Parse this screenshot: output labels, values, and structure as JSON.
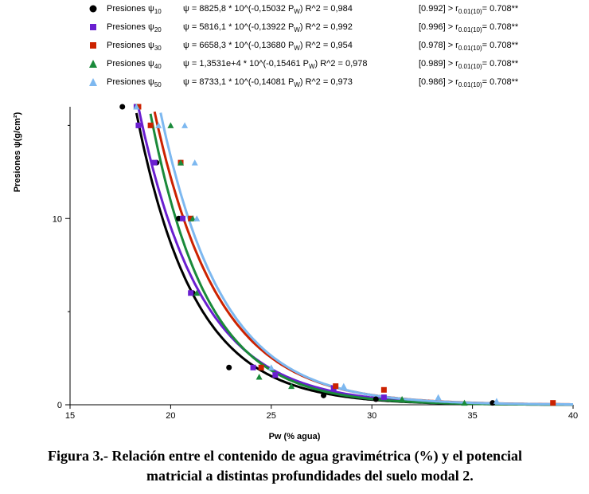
{
  "legend": [
    {
      "name": "Presiones",
      "psi": "ψ",
      "psi_sub": "10",
      "eq_prefix": "ψ = 8825,8 * 10^(-0,15032 P",
      "eq_sub": "W",
      "eq_suffix": ")",
      "r2": "R^2 = 0,984",
      "test_prefix": "[0.992] > r",
      "test_sub": "0.01(10)",
      "test_suffix": "= 0.708**",
      "color": "#000000",
      "marker": "circle"
    },
    {
      "name": "Presiones",
      "psi": "ψ",
      "psi_sub": "20",
      "eq_prefix": "ψ = 5816,1 * 10^(-0,13922 P",
      "eq_sub": "W",
      "eq_suffix": ")",
      "r2": "R^2 = 0,992",
      "test_prefix": "[0.996] > r",
      "test_sub": "0.01(10)",
      "test_suffix": "= 0.708**",
      "color": "#6a1fd0",
      "marker": "square"
    },
    {
      "name": "Presiones",
      "psi": "ψ",
      "psi_sub": "30",
      "eq_prefix": "ψ = 6658,3 * 10^(-0,13680 P",
      "eq_sub": "W",
      "eq_suffix": ")",
      "r2": "R^2 = 0,954",
      "test_prefix": "[0.978] > r",
      "test_sub": "0.01(10)",
      "test_suffix": "= 0.708**",
      "color": "#cc2200",
      "marker": "square"
    },
    {
      "name": "Presiones",
      "psi": "ψ",
      "psi_sub": "40",
      "eq_prefix": "ψ = 1,3531e+4 * 10^(-0,15461 P",
      "eq_sub": "W",
      "eq_suffix": ")",
      "r2": "R^2 = 0,978",
      "test_prefix": "[0.989] > r",
      "test_sub": "0.01(10)",
      "test_suffix": "= 0.708**",
      "color": "#1a8a3a",
      "marker": "triangle"
    },
    {
      "name": "Presiones",
      "psi": "ψ",
      "psi_sub": "50",
      "eq_prefix": "ψ = 8733,1 * 10^(-0,14081 P",
      "eq_sub": "W",
      "eq_suffix": ")",
      "r2": "R^2 = 0,973",
      "test_prefix": "[0.986] > r",
      "test_sub": "0.01(10)",
      "test_suffix": "= 0.708**",
      "color": "#7db8f0",
      "marker": "triangle"
    }
  ],
  "axes": {
    "ylabel": "Presiones ψ(g/cm²)",
    "xlabel": "Pw (% agua)"
  },
  "caption": {
    "line1": "Figura  3.- Relación entre el contenido de agua gravimétrica (%) y el potencial",
    "line2": "matricial  a distintas profundidades del suelo modal 2."
  },
  "chart_data": {
    "type": "scatter",
    "xlim": [
      15,
      40
    ],
    "ylim": [
      0,
      16
    ],
    "xticks": [
      "15",
      "20",
      "25",
      "30",
      "35",
      "40"
    ],
    "yticks": [
      "0",
      "10"
    ],
    "series": [
      {
        "name": "Presiones ψ10",
        "color": "#000000",
        "a": 8825.8,
        "b": 0.15032,
        "x": [
          17.6,
          18.4,
          19.3,
          20.4,
          21.1,
          22.9,
          27.6,
          30.2,
          36.0
        ],
        "y": [
          16.0,
          15.0,
          13.0,
          10.0,
          6.0,
          2.0,
          0.5,
          0.3,
          0.1
        ]
      },
      {
        "name": "Presiones ψ20",
        "color": "#6a1fd0",
        "a": 5816.1,
        "b": 0.13922,
        "x": [
          18.3,
          18.4,
          19.2,
          20.6,
          21.0,
          24.1,
          25.2,
          28.1,
          30.6
        ],
        "y": [
          16.0,
          15.0,
          13.0,
          10.0,
          6.0,
          2.0,
          1.6,
          0.9,
          0.4
        ]
      },
      {
        "name": "Presiones ψ30",
        "color": "#cc2200",
        "a": 6658.3,
        "b": 0.1368,
        "x": [
          18.4,
          19.0,
          20.5,
          21.0,
          24.5,
          28.2,
          30.6,
          39.0
        ],
        "y": [
          16.0,
          15.0,
          13.0,
          10.0,
          2.0,
          1.0,
          0.8,
          0.1
        ]
      },
      {
        "name": "Presiones ψ40",
        "color": "#1a8a3a",
        "a": 13531,
        "b": 0.15461,
        "x": [
          18.3,
          20.0,
          20.5,
          21.1,
          21.3,
          24.4,
          26.0,
          31.5,
          34.6
        ],
        "y": [
          16.0,
          15.0,
          13.0,
          10.0,
          6.0,
          1.5,
          1.0,
          0.3,
          0.1
        ]
      },
      {
        "name": "Presiones ψ50",
        "color": "#7db8f0",
        "a": 8733.1,
        "b": 0.14081,
        "x": [
          18.3,
          19.4,
          20.7,
          21.2,
          21.3,
          25.0,
          28.6,
          33.3,
          36.2
        ],
        "y": [
          16.0,
          15.0,
          15.0,
          13.0,
          10.0,
          2.0,
          1.0,
          0.4,
          0.2
        ]
      }
    ]
  }
}
